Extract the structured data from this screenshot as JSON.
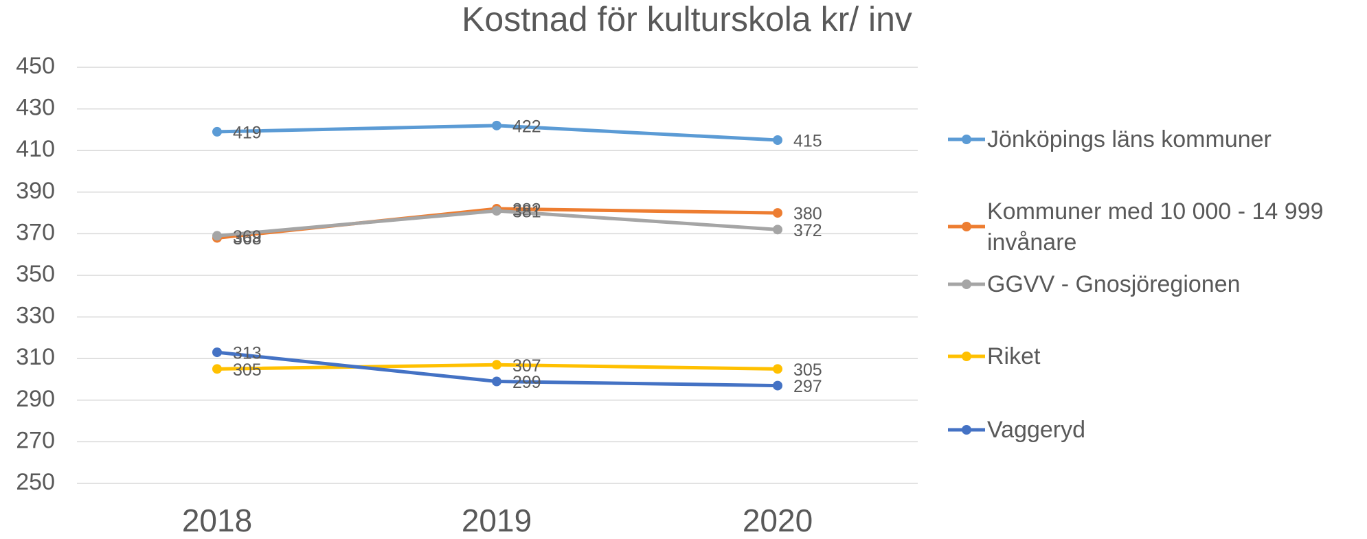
{
  "chart_data": {
    "type": "line",
    "title": "Kostnad för  kulturskola kr/ inv",
    "categories": [
      "2018",
      "2019",
      "2020"
    ],
    "series": [
      {
        "name": "Jönköpings läns kommuner",
        "color": "#5b9bd5",
        "values": [
          419,
          422,
          415
        ]
      },
      {
        "name": "Kommuner med 10 000 - 14 999 invånare",
        "color": "#ed7d31",
        "values": [
          368,
          382,
          380
        ]
      },
      {
        "name": "GGVV - Gnosjöregionen",
        "color": "#a5a5a5",
        "values": [
          369,
          381,
          372
        ]
      },
      {
        "name": "Riket",
        "color": "#ffc000",
        "values": [
          305,
          307,
          305
        ]
      },
      {
        "name": "Vaggeryd",
        "color": "#4472c4",
        "values": [
          313,
          299,
          297
        ]
      }
    ],
    "ylim": [
      250,
      450
    ],
    "yticks": [
      250,
      270,
      290,
      310,
      330,
      350,
      370,
      390,
      410,
      430,
      450
    ],
    "grid": true,
    "legend": "right"
  }
}
